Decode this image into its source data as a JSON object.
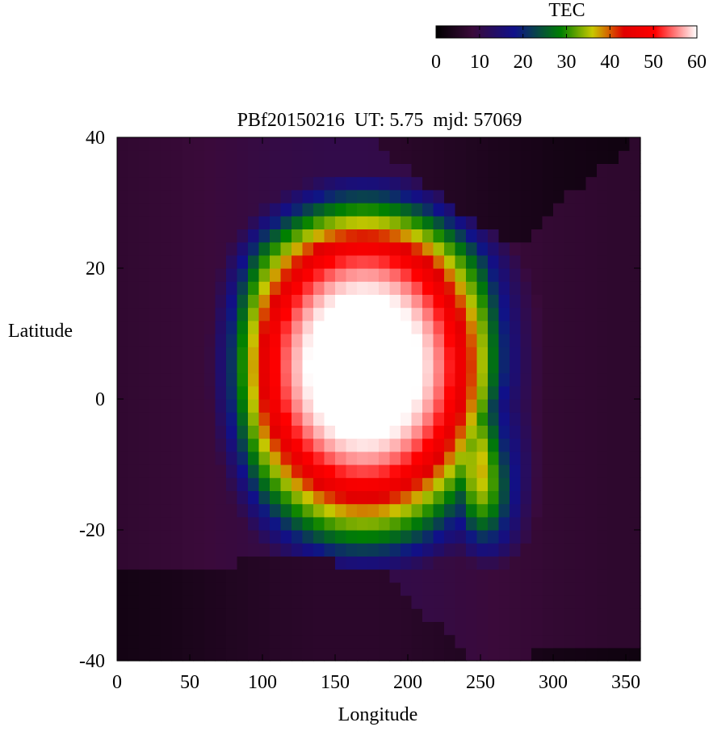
{
  "chart_data": {
    "type": "heatmap",
    "title": "PBf20150216  UT: 5.75  mjd: 57069",
    "xlabel": "Longitude",
    "ylabel": "Latitude",
    "xlim": [
      0,
      360
    ],
    "ylim": [
      -40,
      40
    ],
    "x_ticks": [
      "0",
      "50",
      "100",
      "150",
      "200",
      "250",
      "300",
      "350"
    ],
    "y_ticks": [
      "-40",
      "-20",
      "0",
      "20",
      "40"
    ],
    "colorbar": {
      "label": "TEC",
      "range": [
        0,
        60
      ],
      "ticks": [
        "0",
        "10",
        "20",
        "30",
        "40",
        "50",
        "60"
      ],
      "colors": [
        "#000000",
        "#3a0a3a",
        "#10108a",
        "#008000",
        "#c8c800",
        "#e00000",
        "#ff0000",
        "#ffffff"
      ]
    },
    "grid": false,
    "cell_width_deg": 7.5,
    "cell_height_deg": 2.0,
    "features": {
      "peak_region": {
        "lon_range": [
          105,
          240
        ],
        "lat_range": [
          -17,
          25
        ],
        "tec": 60
      },
      "secondary_minimum": {
        "lon": 265,
        "lat": -7,
        "tec": 28
      },
      "nodata_background_tec": 2
    }
  }
}
